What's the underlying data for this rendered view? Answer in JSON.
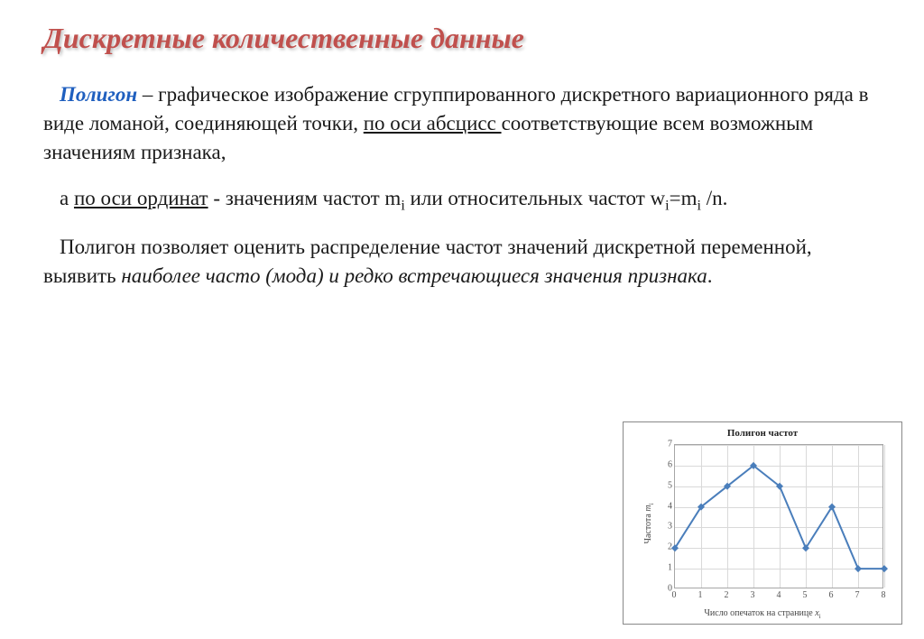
{
  "title": "Дискретные количественные данные",
  "term": "Полигон",
  "p1_a": " – графическое изображение сгруппированного дискретного вариационного ряда в виде ломаной, соединяющей точки,  ",
  "p1_u": "по оси абсцисс ",
  "p1_b": "соответствующие всем возможным значениям признака,",
  "p2_a": "а ",
  "p2_u": "по оси ординат",
  "p2_b": " - значениям частот m",
  "p2_c": " или относительных частот w",
  "p2_d": "=m",
  "p2_e": " /n.",
  "p3_a": "Полигон позволяет оценить распределение частот значений дискретной переменной, выявить ",
  "p3_i": "наиболее часто (мода) и редко встречающиеся значения признака",
  "p3_b": ".",
  "chart": {
    "type": "line",
    "title": "Полигон частот",
    "xlabel_a": "Число опечаток на странице ",
    "xlabel_i": "x",
    "xlabel_sub": "i",
    "ylabel_a": "Частота ",
    "ylabel_i": "m",
    "ylabel_sub": "i",
    "x_ticks": [
      0,
      1,
      2,
      3,
      4,
      5,
      6,
      7,
      8
    ],
    "y_ticks": [
      0,
      1,
      2,
      3,
      4,
      5,
      6,
      7
    ],
    "xlim": [
      0,
      8
    ],
    "ylim": [
      0,
      7
    ],
    "values": [
      2,
      4,
      5,
      6,
      5,
      2,
      4,
      1,
      1
    ],
    "line_color": "#4a7ebb",
    "marker_color": "#4a7ebb",
    "grid_color": "#d9d9d9",
    "border_color": "#a6a6a6",
    "line_width": 2,
    "marker_size": 4
  }
}
